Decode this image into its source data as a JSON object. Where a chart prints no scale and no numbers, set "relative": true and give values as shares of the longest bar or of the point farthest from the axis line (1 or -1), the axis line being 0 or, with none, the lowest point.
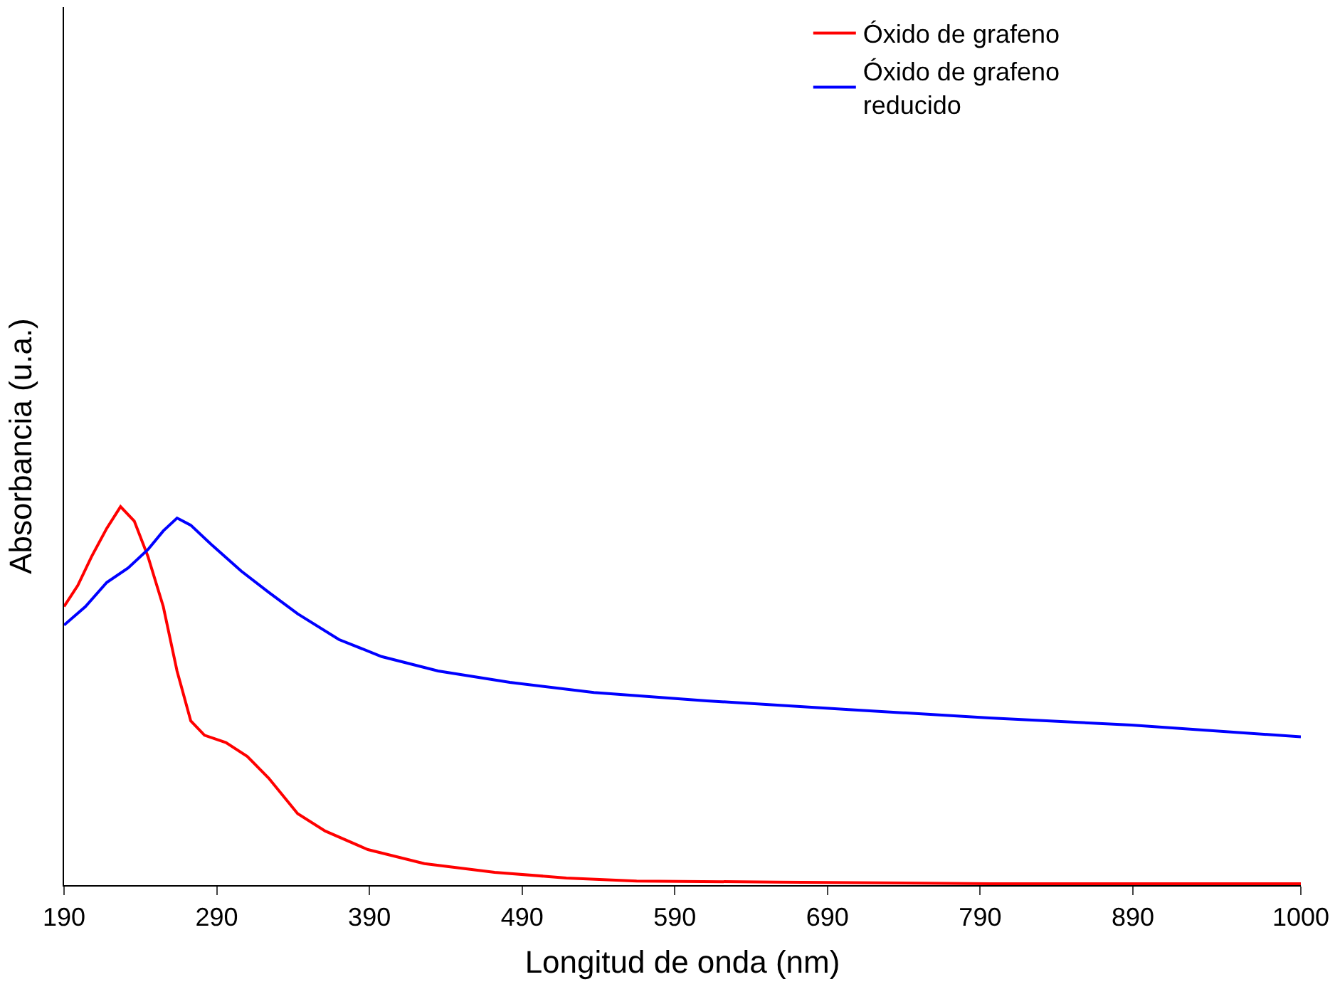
{
  "chart_data": {
    "type": "line",
    "relative": true,
    "xlabel": "Longitud de onda (nm)",
    "ylabel": "Absorbancia (u.a.)",
    "xlim": [
      190,
      1000
    ],
    "xticks": [
      190,
      290,
      390,
      490,
      590,
      690,
      790,
      890,
      1000
    ],
    "legend": "top right",
    "marker": "none",
    "line_style": "solid",
    "series": [
      {
        "name": "Óxido de grafeno",
        "color": "#ff0000",
        "x": [
          190,
          199,
          208,
          218,
          227,
          236,
          245,
          255,
          264,
          273,
          282,
          296,
          310,
          324,
          343,
          361,
          389,
          426,
          472,
          519,
          565,
          657,
          796,
          1000
        ],
        "values": [
          0.736,
          0.792,
          0.868,
          0.943,
          1.0,
          0.962,
          0.868,
          0.736,
          0.566,
          0.434,
          0.396,
          0.377,
          0.34,
          0.283,
          0.189,
          0.143,
          0.094,
          0.057,
          0.034,
          0.019,
          0.011,
          0.008,
          0.004,
          0.004
        ]
      },
      {
        "name": "Óxido de grafeno reducido",
        "color": "#0000ff",
        "x": [
          190,
          204,
          218,
          232,
          245,
          255,
          264,
          273,
          287,
          306,
          324,
          343,
          370,
          398,
          435,
          482,
          537,
          611,
          704,
          796,
          889,
          1000
        ],
        "values": [
          0.687,
          0.736,
          0.8,
          0.838,
          0.887,
          0.936,
          0.97,
          0.951,
          0.898,
          0.83,
          0.774,
          0.717,
          0.649,
          0.604,
          0.566,
          0.536,
          0.509,
          0.487,
          0.464,
          0.442,
          0.423,
          0.392
        ]
      }
    ]
  }
}
